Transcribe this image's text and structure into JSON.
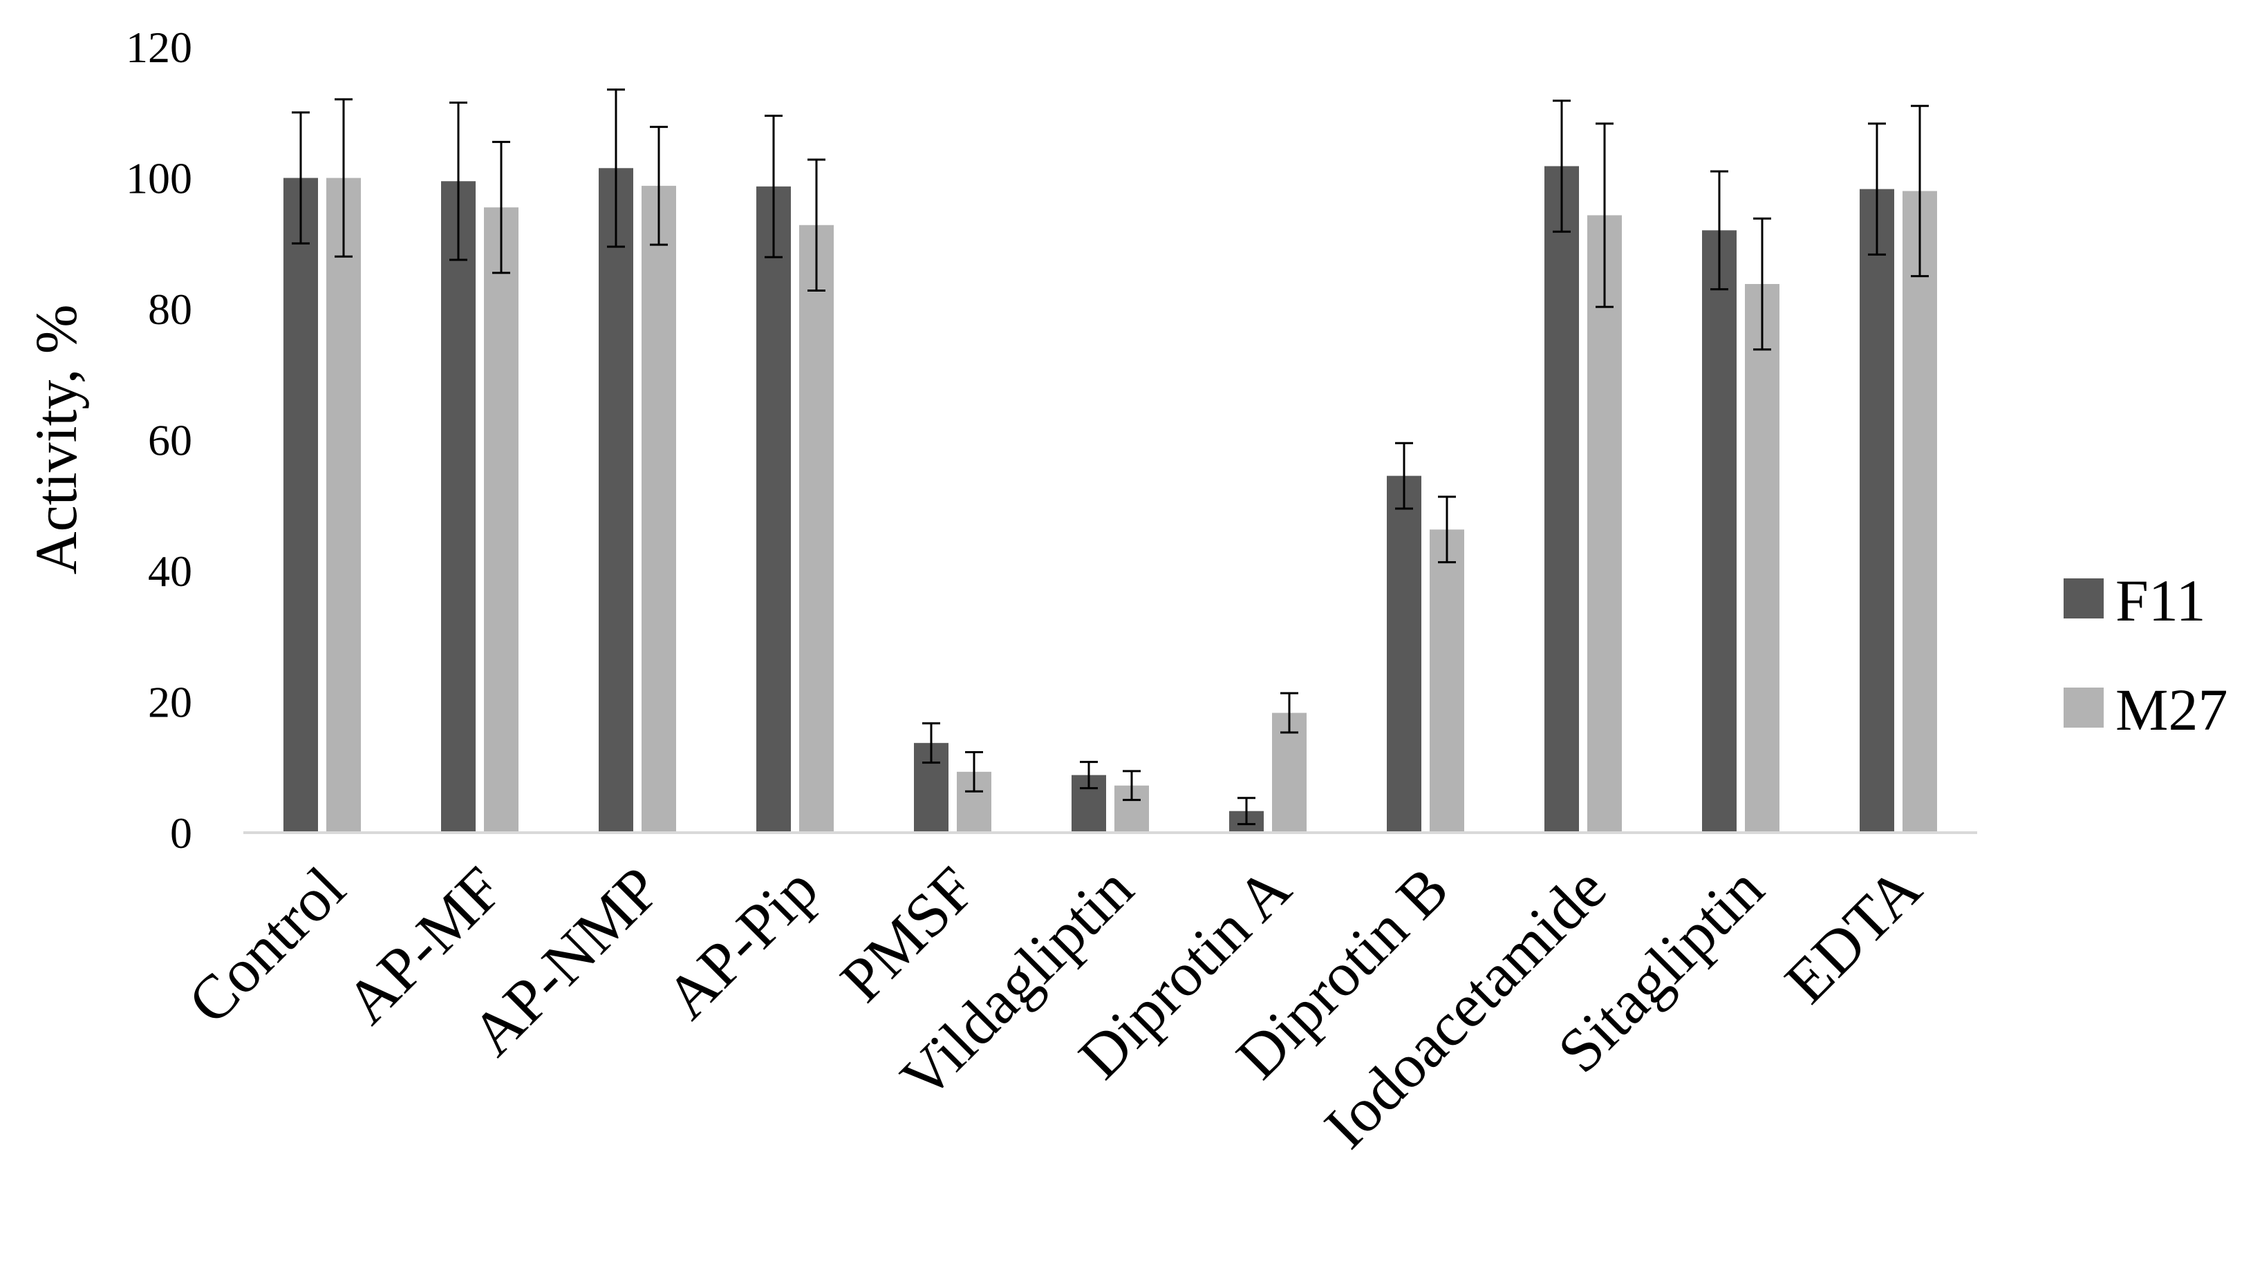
{
  "chart_data": {
    "type": "bar",
    "title": "",
    "xlabel": "",
    "ylabel": "Activity, %",
    "ylim": [
      0,
      120
    ],
    "yticks": [
      0,
      20,
      40,
      60,
      80,
      100,
      120
    ],
    "grid": false,
    "legend_position": "right",
    "categories": [
      "Control",
      "AP-MF",
      "AP-NMP",
      "AP-Pip",
      "PMSF",
      "Vildagliptin",
      "Diprotin A",
      "Diprotin B",
      "Iodoacetamide",
      "Sitagliptin",
      "EDTA"
    ],
    "series": [
      {
        "name": "F11",
        "color": "#595959",
        "values": [
          100,
          99.5,
          101.5,
          98.7,
          13.7,
          8.8,
          3.3,
          54.5,
          101.8,
          92,
          98.3
        ],
        "errors": [
          10,
          12,
          12,
          10.8,
          3.0,
          2.0,
          2.0,
          5.0,
          10,
          9,
          10
        ]
      },
      {
        "name": "M27",
        "color": "#b3b3b3",
        "values": [
          100,
          95.5,
          98.8,
          92.8,
          9.3,
          7.2,
          18.3,
          46.3,
          94.3,
          83.8,
          98
        ],
        "errors": [
          12,
          10,
          9,
          10,
          3.0,
          2.2,
          3.0,
          5.0,
          14,
          10,
          13
        ]
      }
    ],
    "error_bar_color": "#000000",
    "axis_color": "#d9d9d9"
  }
}
